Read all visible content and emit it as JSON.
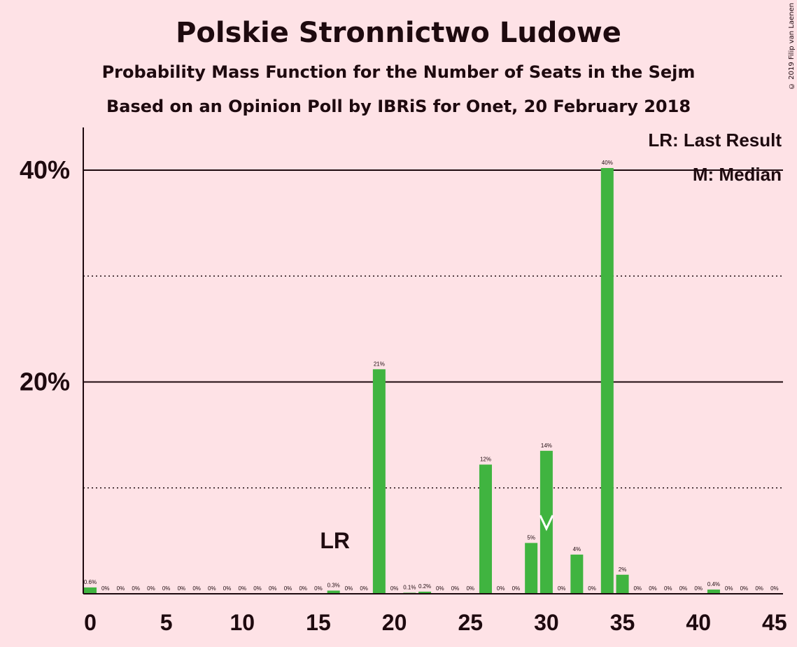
{
  "title": "Polskie Stronnictwo Ludowe",
  "subtitle1": "Probability Mass Function for the Number of Seats in the Sejm",
  "subtitle2": "Based on an Opinion Poll by IBRiS for Onet, 20 February 2018",
  "copyright": "© 2019 Filip van Laenen",
  "legend": {
    "lr": "LR: Last Result",
    "m": "M: Median"
  },
  "colors": {
    "background": "#fee2e6",
    "bar": "#40b440",
    "text": "#1e0a0f"
  },
  "chart_data": {
    "type": "bar",
    "x": [
      0,
      1,
      2,
      3,
      4,
      5,
      6,
      7,
      8,
      9,
      10,
      11,
      12,
      13,
      14,
      15,
      16,
      17,
      18,
      19,
      20,
      21,
      22,
      23,
      24,
      25,
      26,
      27,
      28,
      29,
      30,
      31,
      32,
      33,
      34,
      35,
      36,
      37,
      38,
      39,
      40,
      41,
      42,
      43,
      44,
      45
    ],
    "values": [
      0.6,
      0,
      0,
      0,
      0,
      0,
      0,
      0,
      0,
      0,
      0,
      0,
      0,
      0,
      0,
      0,
      0.3,
      0,
      0,
      21.2,
      0,
      0.1,
      0.2,
      0,
      0,
      0,
      12.2,
      0,
      0,
      4.8,
      13.5,
      0,
      3.7,
      0,
      40.2,
      1.8,
      0,
      0,
      0,
      0,
      0,
      0.4,
      0,
      0,
      0,
      0
    ],
    "labels": [
      "0.6%",
      "0%",
      "0%",
      "0%",
      "0%",
      "0%",
      "0%",
      "0%",
      "0%",
      "0%",
      "0%",
      "0%",
      "0%",
      "0%",
      "0%",
      "0%",
      "0.3%",
      "0%",
      "0%",
      "21%",
      "0%",
      "0.1%",
      "0.2%",
      "0%",
      "0%",
      "0%",
      "12%",
      "0%",
      "0%",
      "5%",
      "14%",
      "0%",
      "4%",
      "0%",
      "40%",
      "2%",
      "0%",
      "0%",
      "0%",
      "0%",
      "0%",
      "0.4%",
      "0%",
      "0%",
      "0%",
      "0%"
    ],
    "xticks": [
      0,
      5,
      10,
      15,
      20,
      25,
      30,
      35,
      40,
      45
    ],
    "xtick_labels": [
      "0",
      "5",
      "10",
      "15",
      "20",
      "25",
      "30",
      "35",
      "40",
      "45"
    ],
    "yticks": [
      20,
      40
    ],
    "ytick_labels": [
      "20%",
      "40%"
    ],
    "ylim": [
      0,
      44
    ],
    "gridlines_dotted": [
      10,
      30
    ],
    "last_result": {
      "x": 16,
      "label": "LR"
    },
    "median": {
      "x": 30,
      "label": "M"
    }
  }
}
